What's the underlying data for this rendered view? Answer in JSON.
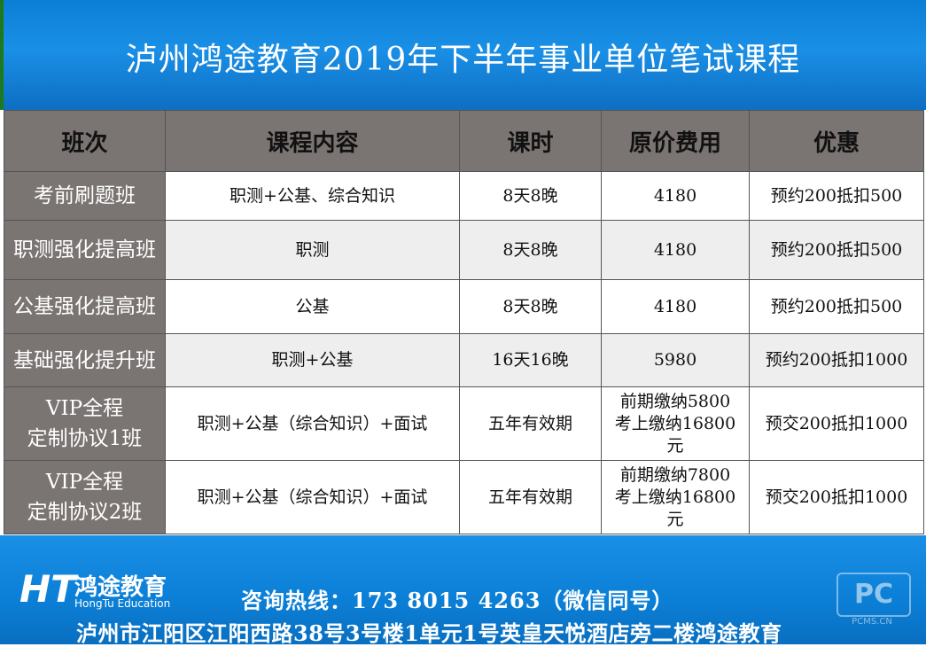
{
  "title": "泸州鸿途教育2019年下半年事业单位笔试课程",
  "columns": [
    "班次",
    "课程内容",
    "课时",
    "原价费用",
    "优惠"
  ],
  "rows": [
    {
      "name": "考前刷题班",
      "content": "职测+公基、综合知识",
      "hours": "8天8晚",
      "price": "4180",
      "discount": "预约200抵扣500"
    },
    {
      "name": "职测强化提高班",
      "content": "职测",
      "hours": "8天8晚",
      "price": "4180",
      "discount": "预约200抵扣500"
    },
    {
      "name": "公基强化提高班",
      "content": "公基",
      "hours": "8天8晚",
      "price": "4180",
      "discount": "预约200抵扣500"
    },
    {
      "name": "基础强化提升班",
      "content": "职测+公基",
      "hours": "16天16晚",
      "price": "5980",
      "discount": "预约200抵扣1000"
    },
    {
      "name_line1": "VIP全程",
      "name_line2": "定制协议1班",
      "content": "职测+公基（综合知识）+面试",
      "hours": "五年有效期",
      "price_line1": "前期缴纳5800",
      "price_line2": "考上缴纳16800",
      "price_line3": "元",
      "discount": "预交200抵扣1000"
    },
    {
      "name_line1": "VIP全程",
      "name_line2": "定制协议2班",
      "content": "职测+公基（综合知识）+面试",
      "hours": "五年有效期",
      "price_line1": "前期缴纳7800",
      "price_line2": "考上缴纳16800",
      "price_line3": "元",
      "discount": "预交200抵扣1000"
    }
  ],
  "footer": {
    "logo_mark": "HT",
    "logo_cn": "鸿途教育",
    "logo_en": "HongTu Education",
    "hotline": "咨询热线：173  8015  4263（微信同号）",
    "address": "泸州市江阳区江阳西路38号3号楼1单元1号英皇天悦酒店旁二楼鸿途教育",
    "watermark_logo": "PC",
    "watermark_text": "PCMS.CN"
  },
  "colors": {
    "header_blue": "#0b7fd6",
    "row_label_bg": "#7a7472",
    "alt_row_bg": "#eeeeee"
  }
}
